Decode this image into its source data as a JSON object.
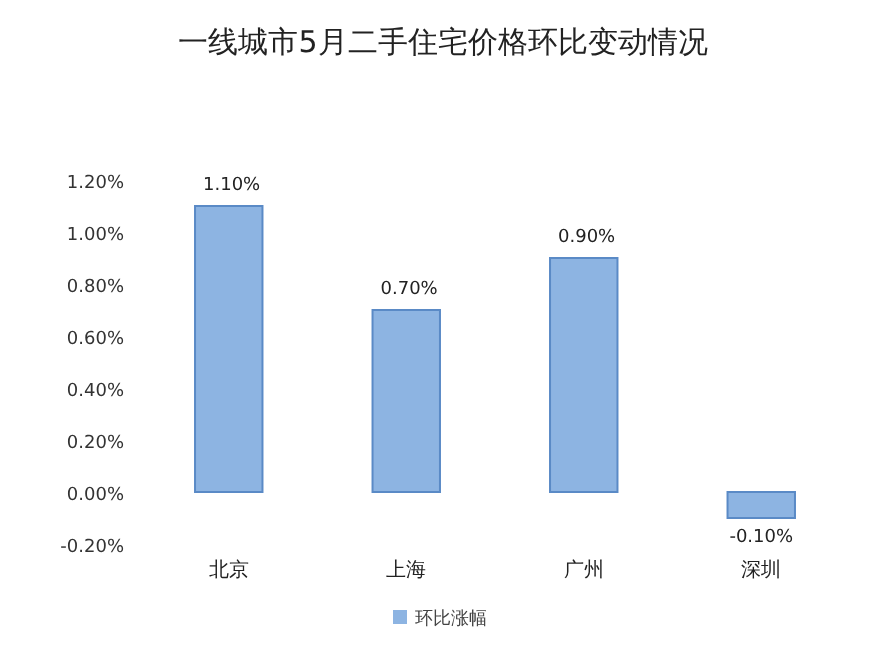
{
  "chart_data": {
    "type": "bar",
    "title": "一线城市5月二手住宅价格环比变动情况",
    "categories": [
      "北京",
      "上海",
      "广州",
      "深圳"
    ],
    "series": [
      {
        "name": "环比涨幅",
        "color": "#8db4e2",
        "values": [
          1.1,
          0.7,
          0.9,
          -0.1
        ],
        "value_labels": [
          "1.10%",
          "0.70%",
          "0.90%",
          "-0.10%"
        ]
      }
    ],
    "ylim": [
      -0.2,
      1.2
    ],
    "yticks": [
      {
        "value": -0.2,
        "label": "-0.20%"
      },
      {
        "value": 0,
        "label": "0.00%"
      },
      {
        "value": 0.2,
        "label": "0.20%"
      },
      {
        "value": 0.4,
        "label": "0.40%"
      },
      {
        "value": 0.6,
        "label": "0.60%"
      },
      {
        "value": 0.8,
        "label": "0.80%"
      },
      {
        "value": 1.0,
        "label": "1.00%"
      },
      {
        "value": 1.2,
        "label": "1.20%"
      }
    ],
    "legend": "bottom"
  }
}
